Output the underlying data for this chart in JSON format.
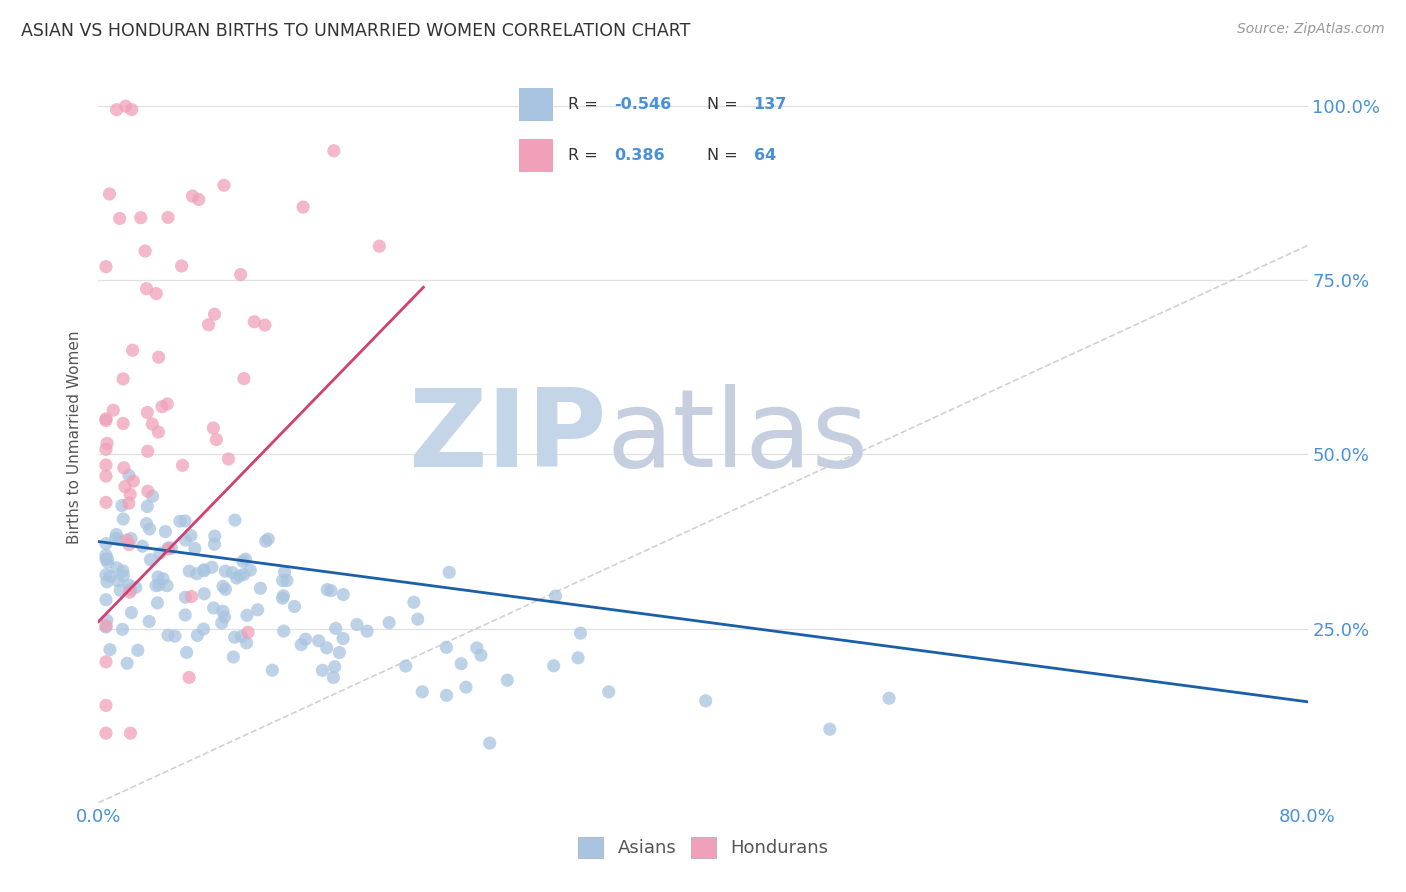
{
  "title": "ASIAN VS HONDURAN BIRTHS TO UNMARRIED WOMEN CORRELATION CHART",
  "source": "Source: ZipAtlas.com",
  "ylabel": "Births to Unmarried Women",
  "xmin": 0.0,
  "xmax": 0.8,
  "ymin": 0.0,
  "ymax": 1.05,
  "asian_R": -0.546,
  "asian_N": 137,
  "honduran_R": 0.386,
  "honduran_N": 64,
  "asian_color": "#a8c4e0",
  "honduran_color": "#f0a0b8",
  "asian_line_color": "#1a5fa8",
  "honduran_line_color": "#d04070",
  "diagonal_color": "#cccccc",
  "legend_label_asian": "Asians",
  "legend_label_honduran": "Hondurans",
  "title_color": "#333333",
  "source_color": "#999999",
  "watermark_zip": "ZIP",
  "watermark_atlas": "atlas",
  "watermark_color_zip": "#c5d5e8",
  "watermark_color_atlas": "#c5cfe0",
  "axis_label_color": "#4a90d9",
  "grid_color": "#e0e0e0",
  "background_color": "#ffffff",
  "legend_asian_R": "-0.546",
  "legend_asian_N": "137",
  "legend_honduran_R": "0.386",
  "legend_honduran_N": "64",
  "asian_line_start_x": 0.0,
  "asian_line_start_y": 0.375,
  "asian_line_end_x": 0.8,
  "asian_line_end_y": 0.145,
  "honduran_line_start_x": 0.0,
  "honduran_line_start_y": 0.26,
  "honduran_line_end_x": 0.215,
  "honduran_line_end_y": 0.74
}
